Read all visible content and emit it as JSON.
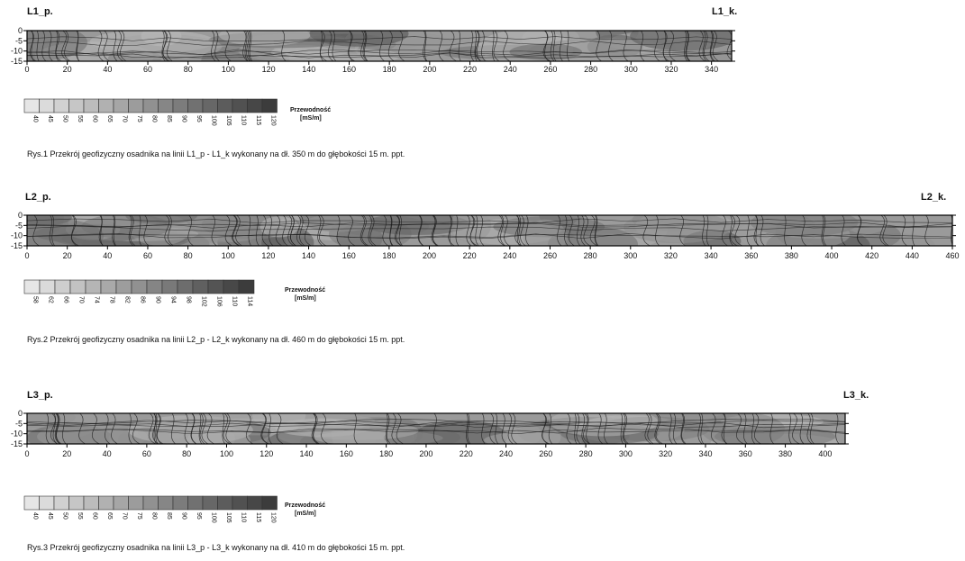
{
  "chart_data": [
    {
      "type": "heatmap",
      "start_label": "L1_p.",
      "end_label": "L1_k.",
      "x_ticks": [
        0,
        20,
        40,
        60,
        80,
        100,
        120,
        140,
        160,
        180,
        200,
        220,
        240,
        260,
        280,
        300,
        320,
        340
      ],
      "xlim": [
        0,
        350
      ],
      "y_ticks": [
        0,
        -5,
        -10,
        -15
      ],
      "ylim": [
        -15,
        0
      ],
      "legend_title": "Przewodność",
      "legend_unit": "[mS/m]",
      "legend_levels": [
        40,
        45,
        50,
        55,
        60,
        65,
        70,
        75,
        80,
        85,
        90,
        95,
        100,
        105,
        110,
        115,
        120
      ],
      "caption": "Rys.1 Przekrój geofizyczny osadnika na linii L1_p - L1_k wykonany na dł. 350 m do głębokości 15 m. ppt.",
      "colors": {
        "low": "#e6e6e6",
        "high": "#3c3c3c"
      }
    },
    {
      "type": "heatmap",
      "start_label": "L2_p.",
      "end_label": "L2_k.",
      "x_ticks": [
        0,
        20,
        40,
        60,
        80,
        100,
        120,
        140,
        160,
        180,
        200,
        220,
        240,
        260,
        280,
        300,
        320,
        340,
        360,
        380,
        400,
        420,
        440,
        460
      ],
      "xlim": [
        0,
        460
      ],
      "y_ticks": [
        0,
        -5,
        -10,
        -15
      ],
      "ylim": [
        -15,
        0
      ],
      "legend_title": "Przewodność",
      "legend_unit": "[mS/m]",
      "legend_levels": [
        58,
        62,
        66,
        70,
        74,
        78,
        82,
        86,
        90,
        94,
        98,
        102,
        106,
        110,
        114
      ],
      "caption": "Rys.2 Przekrój geofizyczny osadnika na linii L2_p - L2_k wykonany na dł. 460 m do głębokości 15 m. ppt.",
      "colors": {
        "low": "#e6e6e6",
        "high": "#3c3c3c"
      }
    },
    {
      "type": "heatmap",
      "start_label": "L3_p.",
      "end_label": "L3_k.",
      "x_ticks": [
        0,
        20,
        40,
        60,
        80,
        100,
        120,
        140,
        160,
        180,
        200,
        220,
        240,
        260,
        280,
        300,
        320,
        340,
        360,
        380,
        400
      ],
      "xlim": [
        0,
        410
      ],
      "y_ticks": [
        0,
        -5,
        -10,
        -15
      ],
      "ylim": [
        -15,
        0
      ],
      "legend_title": "Przewodność",
      "legend_unit": "[mS/m]",
      "legend_levels": [
        40,
        45,
        50,
        55,
        60,
        65,
        70,
        75,
        80,
        85,
        90,
        95,
        100,
        105,
        110,
        115,
        120
      ],
      "caption": "Rys.3 Przekrój geofizyczny osadnika na linii L3_p - L3_k wykonany na dł. 410 m do głębokości 15 m. ppt.",
      "colors": {
        "low": "#e6e6e6",
        "high": "#3c3c3c"
      }
    }
  ]
}
